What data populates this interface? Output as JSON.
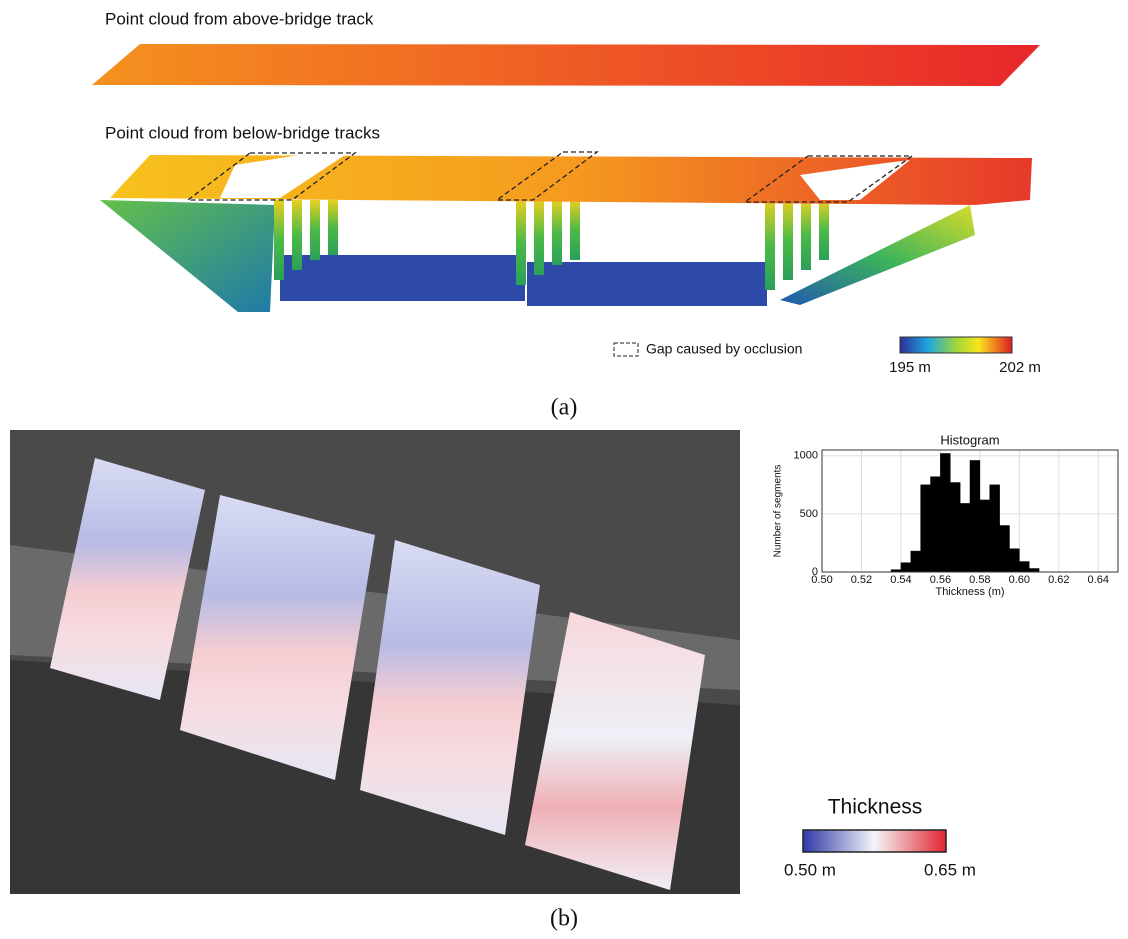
{
  "panel_a": {
    "title_top": "Point cloud from above-bridge track",
    "title_bottom": "Point cloud from below-bridge tracks",
    "legend_gap": "Gap caused by occlusion",
    "colorbar_min": "195 m",
    "colorbar_max": "202 m",
    "caption": "(a)"
  },
  "panel_b": {
    "colorbar_title": "Thickness",
    "colorbar_min": "0.50 m",
    "colorbar_max": "0.65 m",
    "caption": "(b)"
  },
  "chart_data": {
    "type": "histogram",
    "title": "Histogram",
    "x_label": "Thickness (m)",
    "y_label": "Number of segments",
    "bins": [
      0.535,
      0.54,
      0.545,
      0.55,
      0.555,
      0.56,
      0.565,
      0.57,
      0.575,
      0.58,
      0.585,
      0.59,
      0.595,
      0.6,
      0.605,
      0.61
    ],
    "values": [
      20,
      80,
      180,
      750,
      820,
      1020,
      770,
      590,
      960,
      620,
      750,
      400,
      200,
      90,
      30
    ],
    "color": "#000000",
    "xlim": [
      0.5,
      0.65
    ],
    "xticks": [
      {
        "value": 0.5,
        "label": "0.50"
      },
      0.52,
      0.54,
      0.56,
      0.58,
      {
        "value": 0.6,
        "label": "0.60"
      },
      0.62,
      0.64
    ],
    "ylim": [
      0,
      1050
    ],
    "yticks": [
      0,
      500,
      1000
    ],
    "grid": true
  }
}
